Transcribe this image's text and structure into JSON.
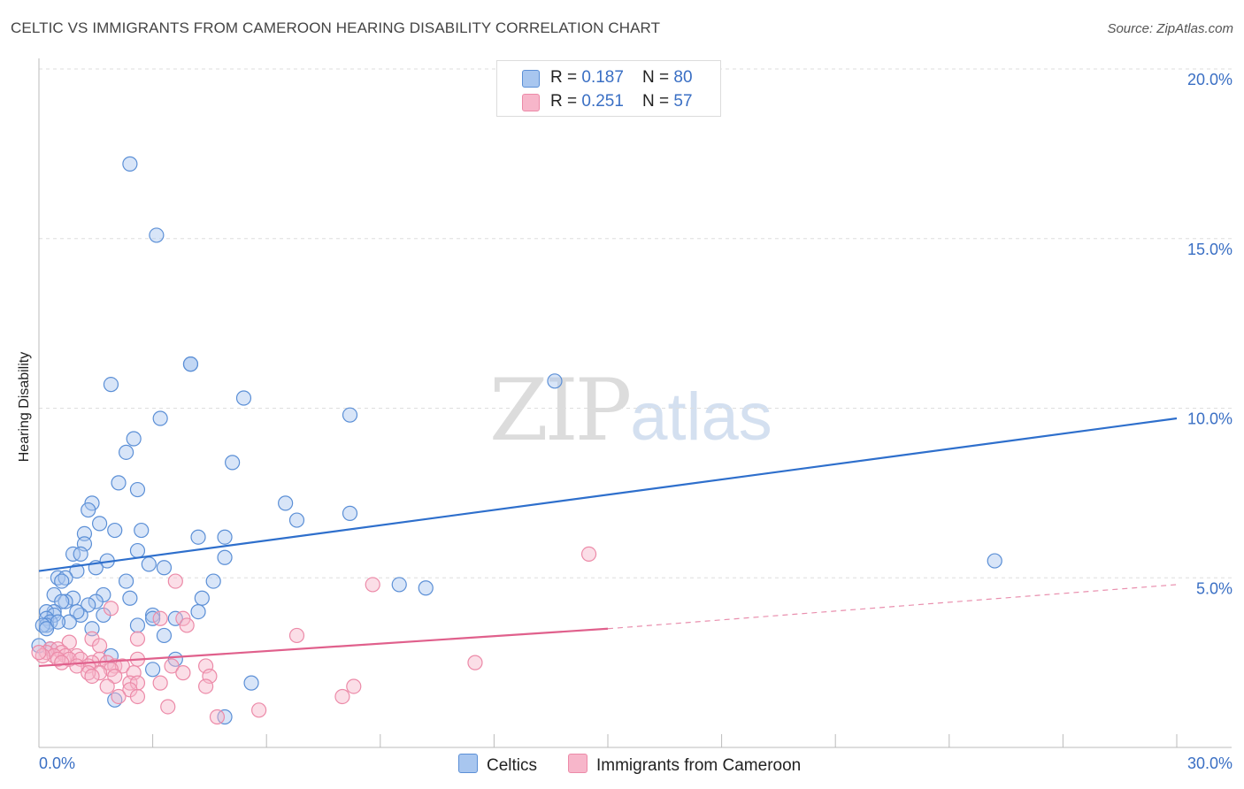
{
  "header": {
    "title": "CELTIC VS IMMIGRANTS FROM CAMEROON HEARING DISABILITY CORRELATION CHART",
    "source": "Source: ZipAtlas.com"
  },
  "watermark": {
    "zip": "ZIP",
    "atlas": "atlas"
  },
  "stats": {
    "rows": [
      {
        "r_label": "R = ",
        "r_value": "0.187",
        "n_label": "N = ",
        "n_value": "80",
        "color": "#a8c6ef"
      },
      {
        "r_label": "R = ",
        "r_value": "0.251",
        "n_label": "N = ",
        "n_value": "57",
        "color": "#f7b6ca"
      }
    ]
  },
  "chart_data": {
    "type": "scatter",
    "title": "CELTIC VS IMMIGRANTS FROM CAMEROON HEARING DISABILITY CORRELATION CHART",
    "xlabel": "",
    "ylabel": "Hearing Disability",
    "xlim": [
      0,
      30
    ],
    "ylim": [
      0,
      20
    ],
    "x_tick_labels": [
      "0.0%",
      "30.0%"
    ],
    "y_tick_labels": [
      "5.0%",
      "10.0%",
      "15.0%",
      "20.0%"
    ],
    "y_ticks": [
      5,
      10,
      15,
      20
    ],
    "grid": true,
    "legend_position": "bottom",
    "series": [
      {
        "name": "Celtics",
        "stroke": "#5b8fd6",
        "fill": "#a8c6ef",
        "line_color": "#2e6fcc",
        "trend": {
          "x0": 0,
          "y0": 5.2,
          "x1": 30,
          "y1": 9.7
        },
        "points": [
          [
            2.4,
            17.2
          ],
          [
            3.1,
            15.1
          ],
          [
            4.0,
            11.3
          ],
          [
            4.0,
            11.3
          ],
          [
            1.9,
            10.7
          ],
          [
            13.6,
            10.8
          ],
          [
            3.2,
            9.7
          ],
          [
            5.4,
            10.3
          ],
          [
            8.2,
            9.8
          ],
          [
            2.5,
            9.1
          ],
          [
            2.3,
            8.7
          ],
          [
            5.1,
            8.4
          ],
          [
            2.1,
            7.8
          ],
          [
            2.6,
            7.6
          ],
          [
            1.4,
            7.2
          ],
          [
            1.3,
            7.0
          ],
          [
            6.5,
            7.2
          ],
          [
            6.8,
            6.7
          ],
          [
            8.2,
            6.9
          ],
          [
            1.6,
            6.6
          ],
          [
            2.0,
            6.4
          ],
          [
            2.7,
            6.4
          ],
          [
            1.2,
            6.3
          ],
          [
            4.2,
            6.2
          ],
          [
            4.9,
            6.2
          ],
          [
            1.2,
            6.0
          ],
          [
            2.6,
            5.8
          ],
          [
            0.9,
            5.7
          ],
          [
            1.1,
            5.7
          ],
          [
            4.9,
            5.6
          ],
          [
            1.8,
            5.5
          ],
          [
            1.5,
            5.3
          ],
          [
            2.9,
            5.4
          ],
          [
            3.3,
            5.3
          ],
          [
            1.0,
            5.2
          ],
          [
            0.5,
            5.0
          ],
          [
            0.7,
            5.0
          ],
          [
            0.6,
            4.9
          ],
          [
            2.3,
            4.9
          ],
          [
            4.6,
            4.9
          ],
          [
            9.5,
            4.8
          ],
          [
            10.2,
            4.7
          ],
          [
            25.2,
            5.5
          ],
          [
            1.7,
            4.5
          ],
          [
            0.4,
            4.5
          ],
          [
            2.4,
            4.4
          ],
          [
            0.9,
            4.4
          ],
          [
            0.7,
            4.3
          ],
          [
            0.6,
            4.3
          ],
          [
            1.5,
            4.3
          ],
          [
            1.3,
            4.2
          ],
          [
            4.3,
            4.4
          ],
          [
            0.4,
            4.0
          ],
          [
            0.2,
            4.0
          ],
          [
            0.4,
            3.9
          ],
          [
            1.7,
            3.9
          ],
          [
            1.1,
            3.9
          ],
          [
            1.0,
            4.0
          ],
          [
            3.0,
            3.9
          ],
          [
            3.0,
            3.8
          ],
          [
            3.6,
            3.8
          ],
          [
            4.2,
            4.0
          ],
          [
            0.2,
            3.8
          ],
          [
            0.3,
            3.7
          ],
          [
            0.8,
            3.7
          ],
          [
            0.2,
            3.6
          ],
          [
            0.1,
            3.6
          ],
          [
            2.6,
            3.6
          ],
          [
            1.4,
            3.5
          ],
          [
            3.3,
            3.3
          ],
          [
            1.9,
            2.7
          ],
          [
            0.3,
            2.9
          ],
          [
            3.6,
            2.6
          ],
          [
            3.0,
            2.3
          ],
          [
            5.6,
            1.9
          ],
          [
            2.0,
            1.4
          ],
          [
            4.9,
            0.9
          ],
          [
            0.2,
            3.5
          ],
          [
            0.0,
            3.0
          ],
          [
            0.5,
            3.7
          ]
        ]
      },
      {
        "name": "Immigrants from Cameroon",
        "stroke": "#ec8aa8",
        "fill": "#f7b6ca",
        "line_color": "#e0608c",
        "trend": {
          "x0": 0,
          "y0": 2.4,
          "x1": 15,
          "y1": 3.5,
          "dash_x1": 30,
          "dash_y1": 4.8
        },
        "points": [
          [
            14.5,
            5.7
          ],
          [
            3.6,
            4.9
          ],
          [
            8.8,
            4.8
          ],
          [
            1.9,
            4.1
          ],
          [
            3.2,
            3.8
          ],
          [
            3.8,
            3.8
          ],
          [
            3.9,
            3.6
          ],
          [
            6.8,
            3.3
          ],
          [
            2.6,
            3.2
          ],
          [
            1.4,
            3.2
          ],
          [
            0.8,
            3.1
          ],
          [
            1.6,
            3.0
          ],
          [
            0.3,
            2.9
          ],
          [
            0.5,
            2.9
          ],
          [
            0.2,
            2.8
          ],
          [
            0.6,
            2.8
          ],
          [
            0.4,
            2.7
          ],
          [
            1.0,
            2.7
          ],
          [
            0.7,
            2.7
          ],
          [
            0.1,
            2.7
          ],
          [
            0.8,
            2.6
          ],
          [
            0.5,
            2.6
          ],
          [
            2.6,
            2.6
          ],
          [
            1.6,
            2.6
          ],
          [
            1.1,
            2.6
          ],
          [
            1.4,
            2.5
          ],
          [
            1.8,
            2.5
          ],
          [
            11.5,
            2.5
          ],
          [
            0.6,
            2.5
          ],
          [
            1.3,
            2.4
          ],
          [
            2.0,
            2.4
          ],
          [
            2.2,
            2.4
          ],
          [
            1.0,
            2.4
          ],
          [
            4.4,
            2.4
          ],
          [
            3.5,
            2.4
          ],
          [
            1.9,
            2.3
          ],
          [
            1.6,
            2.2
          ],
          [
            1.3,
            2.2
          ],
          [
            2.5,
            2.2
          ],
          [
            3.8,
            2.2
          ],
          [
            2.0,
            2.1
          ],
          [
            1.4,
            2.1
          ],
          [
            4.5,
            2.1
          ],
          [
            2.4,
            1.9
          ],
          [
            2.6,
            1.9
          ],
          [
            3.2,
            1.9
          ],
          [
            4.4,
            1.8
          ],
          [
            8.3,
            1.8
          ],
          [
            1.8,
            1.8
          ],
          [
            2.4,
            1.7
          ],
          [
            2.6,
            1.5
          ],
          [
            8.0,
            1.5
          ],
          [
            2.1,
            1.5
          ],
          [
            3.4,
            1.2
          ],
          [
            5.8,
            1.1
          ],
          [
            4.7,
            0.9
          ],
          [
            0.0,
            2.8
          ]
        ]
      }
    ]
  },
  "legend": {
    "items": [
      {
        "label": "Celtics",
        "color": "#a8c6ef",
        "stroke": "#5b8fd6"
      },
      {
        "label": "Immigrants from Cameroon",
        "color": "#f7b6ca",
        "stroke": "#ec8aa8"
      }
    ]
  }
}
